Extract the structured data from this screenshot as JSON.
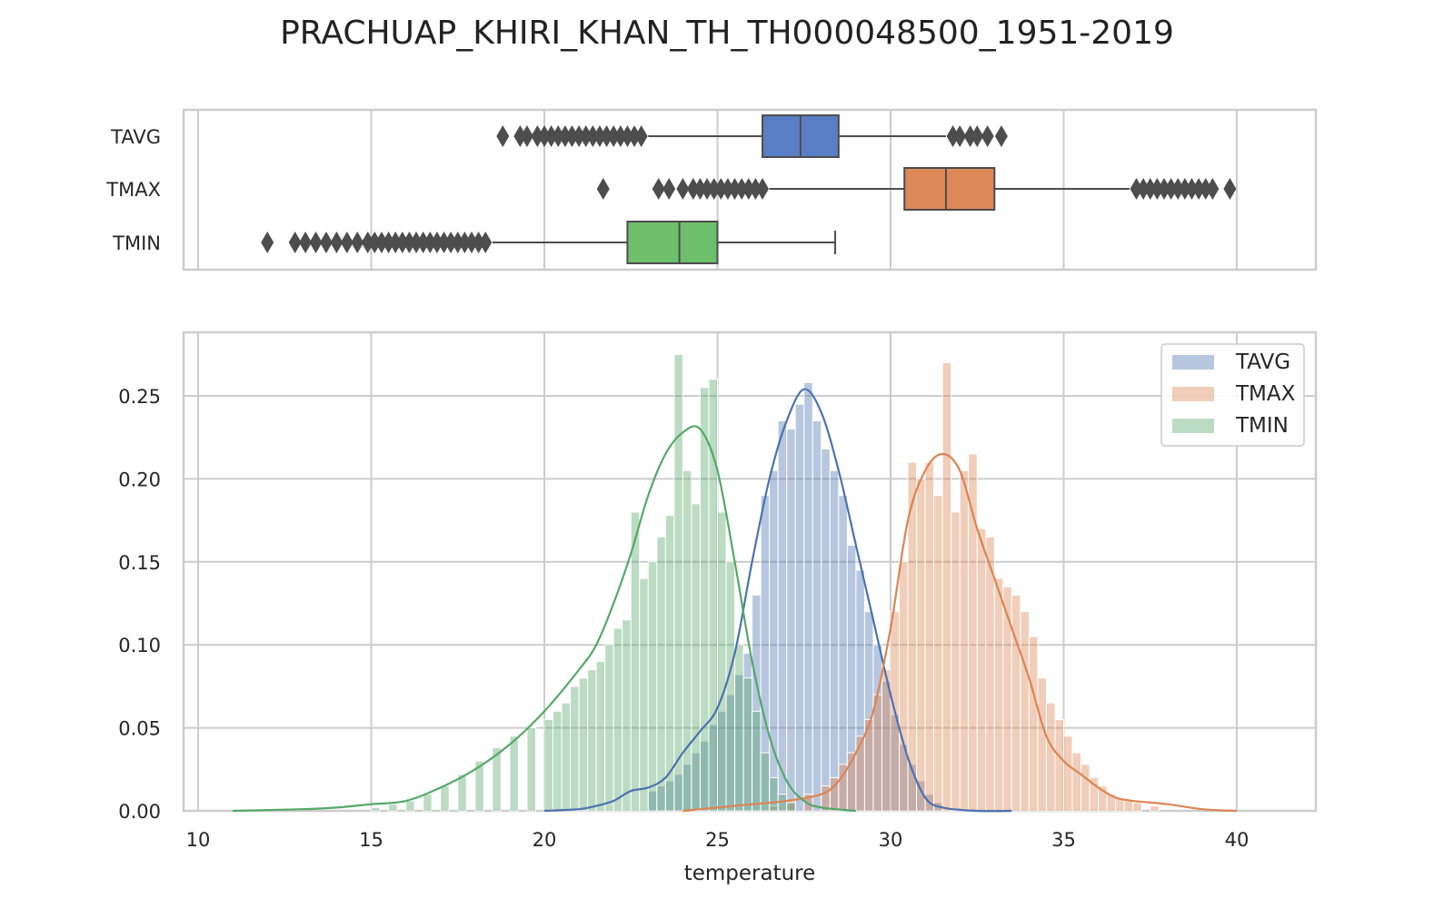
{
  "chart_data": {
    "title": "PRACHUAP_KHIRI_KHAN_TH_TH000048500_1951-2019",
    "xlabel": "temperature",
    "ylabel": "",
    "xlim": [
      9.6,
      42.4
    ],
    "x_ticks": [
      10,
      15,
      20,
      25,
      30,
      35,
      40
    ],
    "grid": true,
    "legend_position": "top-right",
    "boxplot": {
      "type": "box",
      "categories": [
        "TAVG",
        "TMAX",
        "TMIN"
      ],
      "series": [
        {
          "name": "TAVG",
          "color": "#5a7ec6",
          "q1": 26.3,
          "median": 27.4,
          "q3": 28.5,
          "whisker_low": 23.0,
          "whisker_high": 31.6,
          "outliers": [
            18.8,
            19.3,
            19.5,
            19.8,
            20.0,
            20.2,
            20.4,
            20.6,
            20.8,
            21.0,
            21.2,
            21.4,
            21.6,
            21.8,
            22.0,
            22.2,
            22.4,
            22.6,
            22.8,
            31.8,
            32.0,
            32.3,
            32.5,
            32.8,
            33.2
          ]
        },
        {
          "name": "TMAX",
          "color": "#dd8957",
          "q1": 30.4,
          "median": 31.6,
          "q3": 33.0,
          "whisker_low": 26.5,
          "whisker_high": 36.9,
          "outliers": [
            21.7,
            23.3,
            23.6,
            24.0,
            24.3,
            24.5,
            24.7,
            24.9,
            25.1,
            25.3,
            25.5,
            25.7,
            25.9,
            26.1,
            26.3,
            37.1,
            37.3,
            37.5,
            37.7,
            37.9,
            38.1,
            38.3,
            38.5,
            38.7,
            38.9,
            39.1,
            39.3,
            39.8
          ]
        },
        {
          "name": "TMIN",
          "color": "#6dbf6b",
          "q1": 22.4,
          "median": 23.9,
          "q3": 25.0,
          "whisker_low": 18.5,
          "whisker_high": 28.4,
          "outliers": [
            12.0,
            12.8,
            13.1,
            13.4,
            13.7,
            14.0,
            14.3,
            14.6,
            14.9,
            15.1,
            15.3,
            15.5,
            15.7,
            15.9,
            16.1,
            16.3,
            16.5,
            16.7,
            16.9,
            17.1,
            17.3,
            17.5,
            17.7,
            17.9,
            18.1,
            18.3
          ]
        }
      ]
    },
    "histogram": {
      "type": "bar",
      "ylim": [
        0,
        0.29
      ],
      "y_ticks": [
        0.0,
        0.05,
        0.1,
        0.15,
        0.2,
        0.25
      ],
      "y_tick_labels": [
        "0.00",
        "0.05",
        "0.10",
        "0.15",
        "0.20",
        "0.25"
      ],
      "bin_width": 0.25,
      "series": [
        {
          "name": "TAVG",
          "color": "#4c72b0",
          "fill_opacity": 0.4,
          "hist": [
            [
              23.0,
              0.012
            ],
            [
              23.25,
              0.015
            ],
            [
              23.5,
              0.018
            ],
            [
              23.75,
              0.022
            ],
            [
              24.0,
              0.028
            ],
            [
              24.25,
              0.035
            ],
            [
              24.5,
              0.042
            ],
            [
              24.75,
              0.052
            ],
            [
              25.0,
              0.06
            ],
            [
              25.25,
              0.07
            ],
            [
              25.5,
              0.082
            ],
            [
              25.75,
              0.095
            ],
            [
              26.0,
              0.13
            ],
            [
              26.25,
              0.19
            ],
            [
              26.5,
              0.205
            ],
            [
              26.75,
              0.235
            ],
            [
              27.0,
              0.23
            ],
            [
              27.25,
              0.245
            ],
            [
              27.5,
              0.258
            ],
            [
              27.75,
              0.235
            ],
            [
              28.0,
              0.218
            ],
            [
              28.25,
              0.205
            ],
            [
              28.5,
              0.19
            ],
            [
              28.75,
              0.16
            ],
            [
              29.0,
              0.145
            ],
            [
              29.25,
              0.12
            ],
            [
              29.5,
              0.1
            ],
            [
              29.75,
              0.078
            ],
            [
              30.0,
              0.058
            ],
            [
              30.25,
              0.04
            ],
            [
              30.5,
              0.028
            ],
            [
              30.75,
              0.018
            ],
            [
              31.0,
              0.01
            ],
            [
              31.25,
              0.005
            ]
          ],
          "kde": [
            [
              20.0,
              0.0
            ],
            [
              21.0,
              0.001
            ],
            [
              21.5,
              0.003
            ],
            [
              22.0,
              0.006
            ],
            [
              22.5,
              0.012
            ],
            [
              23.0,
              0.014
            ],
            [
              23.5,
              0.02
            ],
            [
              24.0,
              0.035
            ],
            [
              24.5,
              0.048
            ],
            [
              25.0,
              0.062
            ],
            [
              25.5,
              0.095
            ],
            [
              26.0,
              0.15
            ],
            [
              26.5,
              0.2
            ],
            [
              27.0,
              0.235
            ],
            [
              27.5,
              0.254
            ],
            [
              28.0,
              0.24
            ],
            [
              28.5,
              0.205
            ],
            [
              29.0,
              0.16
            ],
            [
              29.5,
              0.115
            ],
            [
              30.0,
              0.07
            ],
            [
              30.5,
              0.032
            ],
            [
              31.0,
              0.008
            ],
            [
              31.5,
              0.002
            ],
            [
              32.5,
              0.0
            ],
            [
              33.5,
              0.0
            ]
          ]
        },
        {
          "name": "TMAX",
          "color": "#dd8452",
          "fill_opacity": 0.4,
          "hist": [
            [
              26.5,
              0.003
            ],
            [
              27.0,
              0.006
            ],
            [
              27.5,
              0.01
            ],
            [
              28.0,
              0.015
            ],
            [
              28.25,
              0.02
            ],
            [
              28.5,
              0.028
            ],
            [
              28.75,
              0.035
            ],
            [
              29.0,
              0.045
            ],
            [
              29.25,
              0.055
            ],
            [
              29.5,
              0.07
            ],
            [
              29.75,
              0.085
            ],
            [
              30.0,
              0.12
            ],
            [
              30.25,
              0.15
            ],
            [
              30.5,
              0.21
            ],
            [
              30.75,
              0.2
            ],
            [
              31.0,
              0.21
            ],
            [
              31.25,
              0.19
            ],
            [
              31.5,
              0.27
            ],
            [
              31.75,
              0.18
            ],
            [
              32.0,
              0.205
            ],
            [
              32.25,
              0.215
            ],
            [
              32.5,
              0.17
            ],
            [
              32.75,
              0.165
            ],
            [
              33.0,
              0.14
            ],
            [
              33.25,
              0.135
            ],
            [
              33.5,
              0.13
            ],
            [
              33.75,
              0.12
            ],
            [
              34.0,
              0.105
            ],
            [
              34.25,
              0.08
            ],
            [
              34.5,
              0.065
            ],
            [
              34.75,
              0.055
            ],
            [
              35.0,
              0.045
            ],
            [
              35.25,
              0.035
            ],
            [
              35.5,
              0.028
            ],
            [
              35.75,
              0.02
            ],
            [
              36.0,
              0.015
            ],
            [
              36.25,
              0.01
            ],
            [
              36.5,
              0.008
            ],
            [
              36.75,
              0.006
            ],
            [
              37.0,
              0.005
            ],
            [
              37.5,
              0.003
            ]
          ],
          "kde": [
            [
              24.0,
              0.0
            ],
            [
              25.0,
              0.002
            ],
            [
              26.0,
              0.004
            ],
            [
              27.0,
              0.006
            ],
            [
              28.0,
              0.01
            ],
            [
              28.5,
              0.018
            ],
            [
              29.0,
              0.035
            ],
            [
              29.5,
              0.06
            ],
            [
              30.0,
              0.11
            ],
            [
              30.5,
              0.175
            ],
            [
              31.0,
              0.205
            ],
            [
              31.5,
              0.215
            ],
            [
              32.0,
              0.205
            ],
            [
              32.5,
              0.17
            ],
            [
              33.0,
              0.14
            ],
            [
              33.5,
              0.11
            ],
            [
              34.0,
              0.08
            ],
            [
              34.5,
              0.045
            ],
            [
              35.0,
              0.03
            ],
            [
              35.5,
              0.022
            ],
            [
              36.0,
              0.014
            ],
            [
              36.5,
              0.008
            ],
            [
              37.0,
              0.006
            ],
            [
              38.0,
              0.004
            ],
            [
              39.0,
              0.001
            ],
            [
              40.0,
              0.0
            ]
          ]
        },
        {
          "name": "TMIN",
          "color": "#55a868",
          "fill_opacity": 0.4,
          "hist": [
            [
              15.0,
              0.002
            ],
            [
              15.5,
              0.004
            ],
            [
              16.0,
              0.006
            ],
            [
              16.5,
              0.01
            ],
            [
              17.0,
              0.015
            ],
            [
              17.5,
              0.022
            ],
            [
              18.0,
              0.03
            ],
            [
              18.5,
              0.038
            ],
            [
              19.0,
              0.045
            ],
            [
              19.5,
              0.05
            ],
            [
              20.0,
              0.055
            ],
            [
              20.25,
              0.06
            ],
            [
              20.5,
              0.065
            ],
            [
              20.75,
              0.075
            ],
            [
              21.0,
              0.08
            ],
            [
              21.25,
              0.085
            ],
            [
              21.5,
              0.09
            ],
            [
              21.75,
              0.1
            ],
            [
              22.0,
              0.11
            ],
            [
              22.25,
              0.115
            ],
            [
              22.5,
              0.18
            ],
            [
              22.75,
              0.14
            ],
            [
              23.0,
              0.15
            ],
            [
              23.25,
              0.165
            ],
            [
              23.5,
              0.178
            ],
            [
              23.75,
              0.275
            ],
            [
              24.0,
              0.205
            ],
            [
              24.25,
              0.185
            ],
            [
              24.5,
              0.255
            ],
            [
              24.75,
              0.26
            ],
            [
              25.0,
              0.18
            ],
            [
              25.25,
              0.15
            ],
            [
              25.5,
              0.1
            ],
            [
              25.75,
              0.08
            ],
            [
              26.0,
              0.06
            ],
            [
              26.25,
              0.035
            ],
            [
              26.5,
              0.02
            ],
            [
              26.75,
              0.01
            ],
            [
              27.0,
              0.005
            ]
          ],
          "kde": [
            [
              11.0,
              0.0
            ],
            [
              13.0,
              0.001
            ],
            [
              14.0,
              0.002
            ],
            [
              15.0,
              0.004
            ],
            [
              16.0,
              0.006
            ],
            [
              17.0,
              0.014
            ],
            [
              18.0,
              0.025
            ],
            [
              19.0,
              0.04
            ],
            [
              20.0,
              0.06
            ],
            [
              21.0,
              0.085
            ],
            [
              21.5,
              0.1
            ],
            [
              22.0,
              0.125
            ],
            [
              22.5,
              0.155
            ],
            [
              23.0,
              0.19
            ],
            [
              23.5,
              0.215
            ],
            [
              24.0,
              0.228
            ],
            [
              24.5,
              0.23
            ],
            [
              25.0,
              0.205
            ],
            [
              25.5,
              0.15
            ],
            [
              26.0,
              0.09
            ],
            [
              26.5,
              0.045
            ],
            [
              27.0,
              0.018
            ],
            [
              27.5,
              0.006
            ],
            [
              28.0,
              0.002
            ],
            [
              29.0,
              0.0
            ]
          ]
        }
      ]
    }
  }
}
